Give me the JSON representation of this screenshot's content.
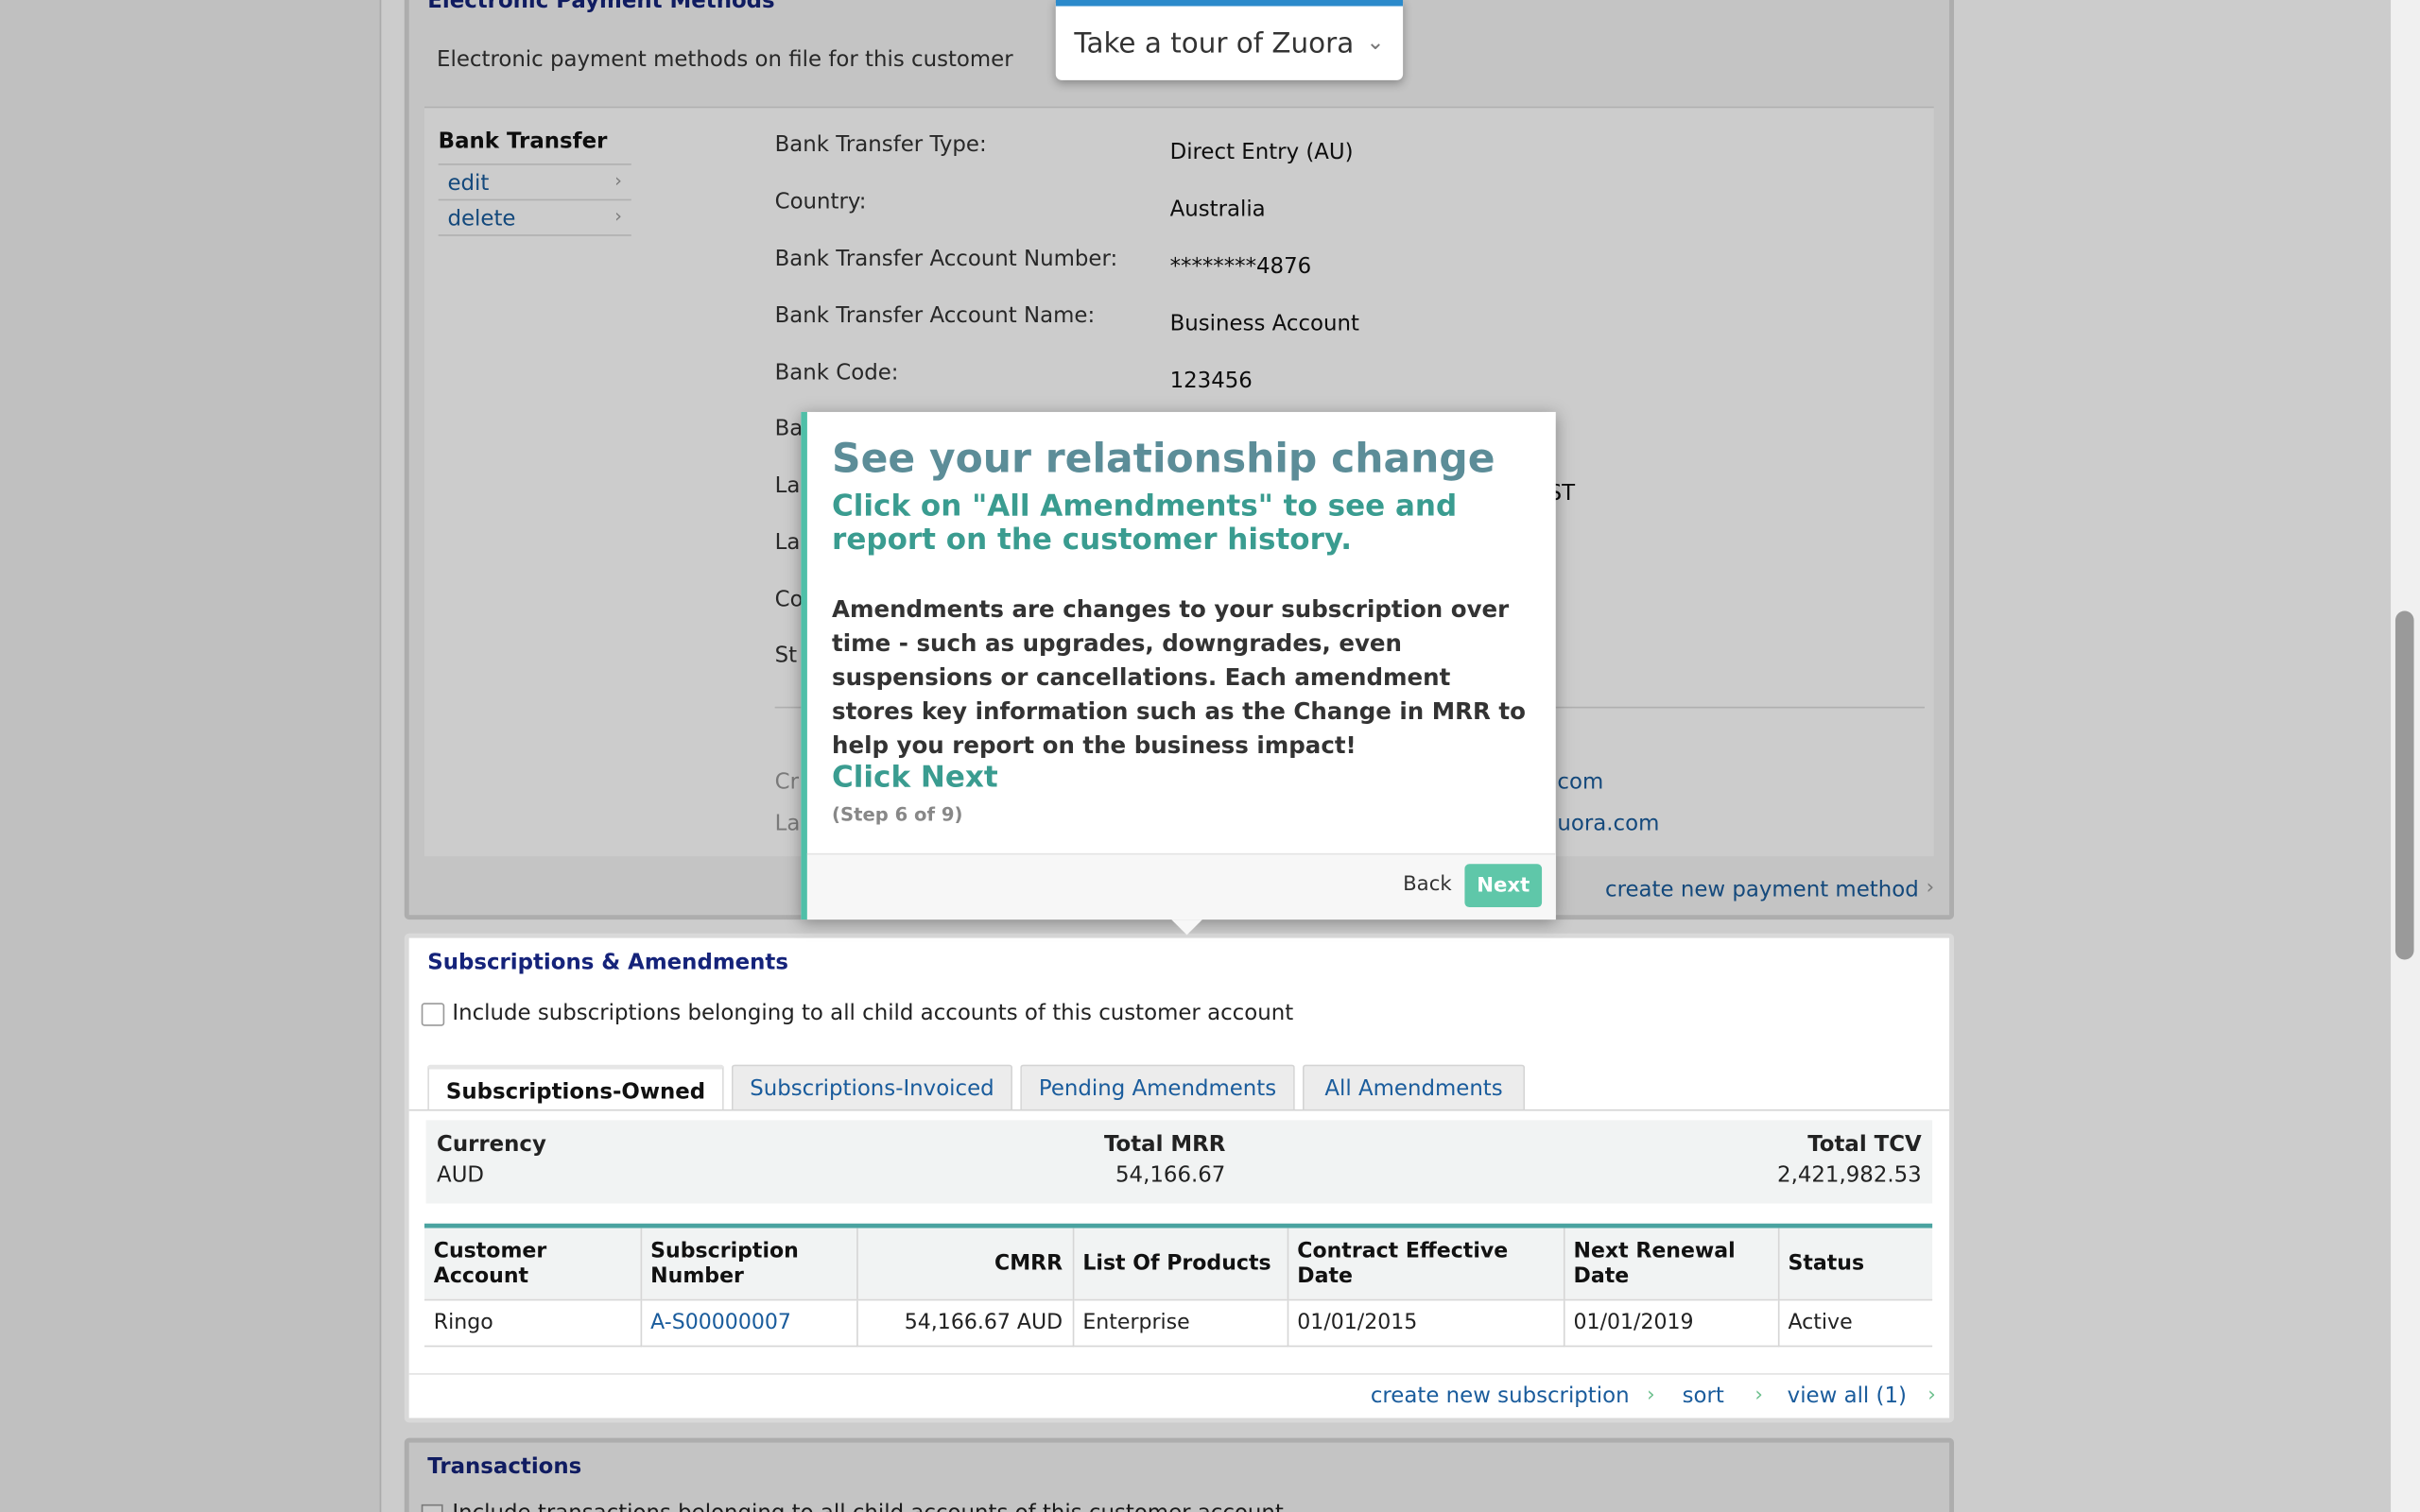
{
  "payment_methods": {
    "title": "Electronic Payment Methods",
    "description": "Electronic payment methods on file for this customer",
    "method_name": "Bank Transfer",
    "actions": [
      "edit",
      "delete"
    ],
    "fields": [
      {
        "label": "Bank Transfer Type:",
        "value": "Direct Entry (AU)"
      },
      {
        "label": "Country:",
        "value": "Australia"
      },
      {
        "label": "Bank Transfer Account Number:",
        "value": "********4876"
      },
      {
        "label": "Bank Transfer Account Name:",
        "value": "Business Account"
      },
      {
        "label": "Bank Code:",
        "value": "123456"
      }
    ],
    "partial_labels": [
      "Ba",
      "La",
      "La",
      "Co",
      "St",
      "Cr",
      "La"
    ],
    "partial_values": [
      "ST",
      "com",
      "uora.com"
    ],
    "create_link": "create new payment method"
  },
  "tour": {
    "widget_label": "Take a tour of Zuora",
    "title": "See your relationship change",
    "subtitle": "Click on \"All Amendments\" to see and report on the customer history.",
    "body": "Amendments are changes to your subscription over time - such as upgrades, downgrades, even suspensions or cancellations. Each amendment stores key information such as the Change in MRR to help you report on the business impact!",
    "cta": "Click Next",
    "step": "(Step 6 of 9)",
    "back_label": "Back",
    "next_label": "Next"
  },
  "subscriptions": {
    "title": "Subscriptions & Amendments",
    "include_children_label": "Include subscriptions belonging to all child accounts of this customer account",
    "tabs": [
      "Subscriptions-Owned",
      "Subscriptions-Invoiced",
      "Pending Amendments",
      "All Amendments"
    ],
    "summary": {
      "currency_label": "Currency",
      "currency_value": "AUD",
      "mrr_label": "Total MRR",
      "mrr_value": "54,166.67",
      "tcv_label": "Total TCV",
      "tcv_value": "2,421,982.53"
    },
    "columns": [
      "Customer Account",
      "Subscription Number",
      "CMRR",
      "List Of Products",
      "Contract Effective Date",
      "Next Renewal Date",
      "Status"
    ],
    "rows": [
      [
        "Ringo",
        "A-S00000007",
        "54,166.67 AUD",
        "Enterprise",
        "01/01/2015",
        "01/01/2019",
        "Active"
      ]
    ],
    "footer_links": [
      "create new subscription",
      "sort",
      "view all (1)"
    ]
  },
  "transactions": {
    "title": "Transactions",
    "include_children_label": "Include transactions belonging to all child accounts of this customer account"
  }
}
